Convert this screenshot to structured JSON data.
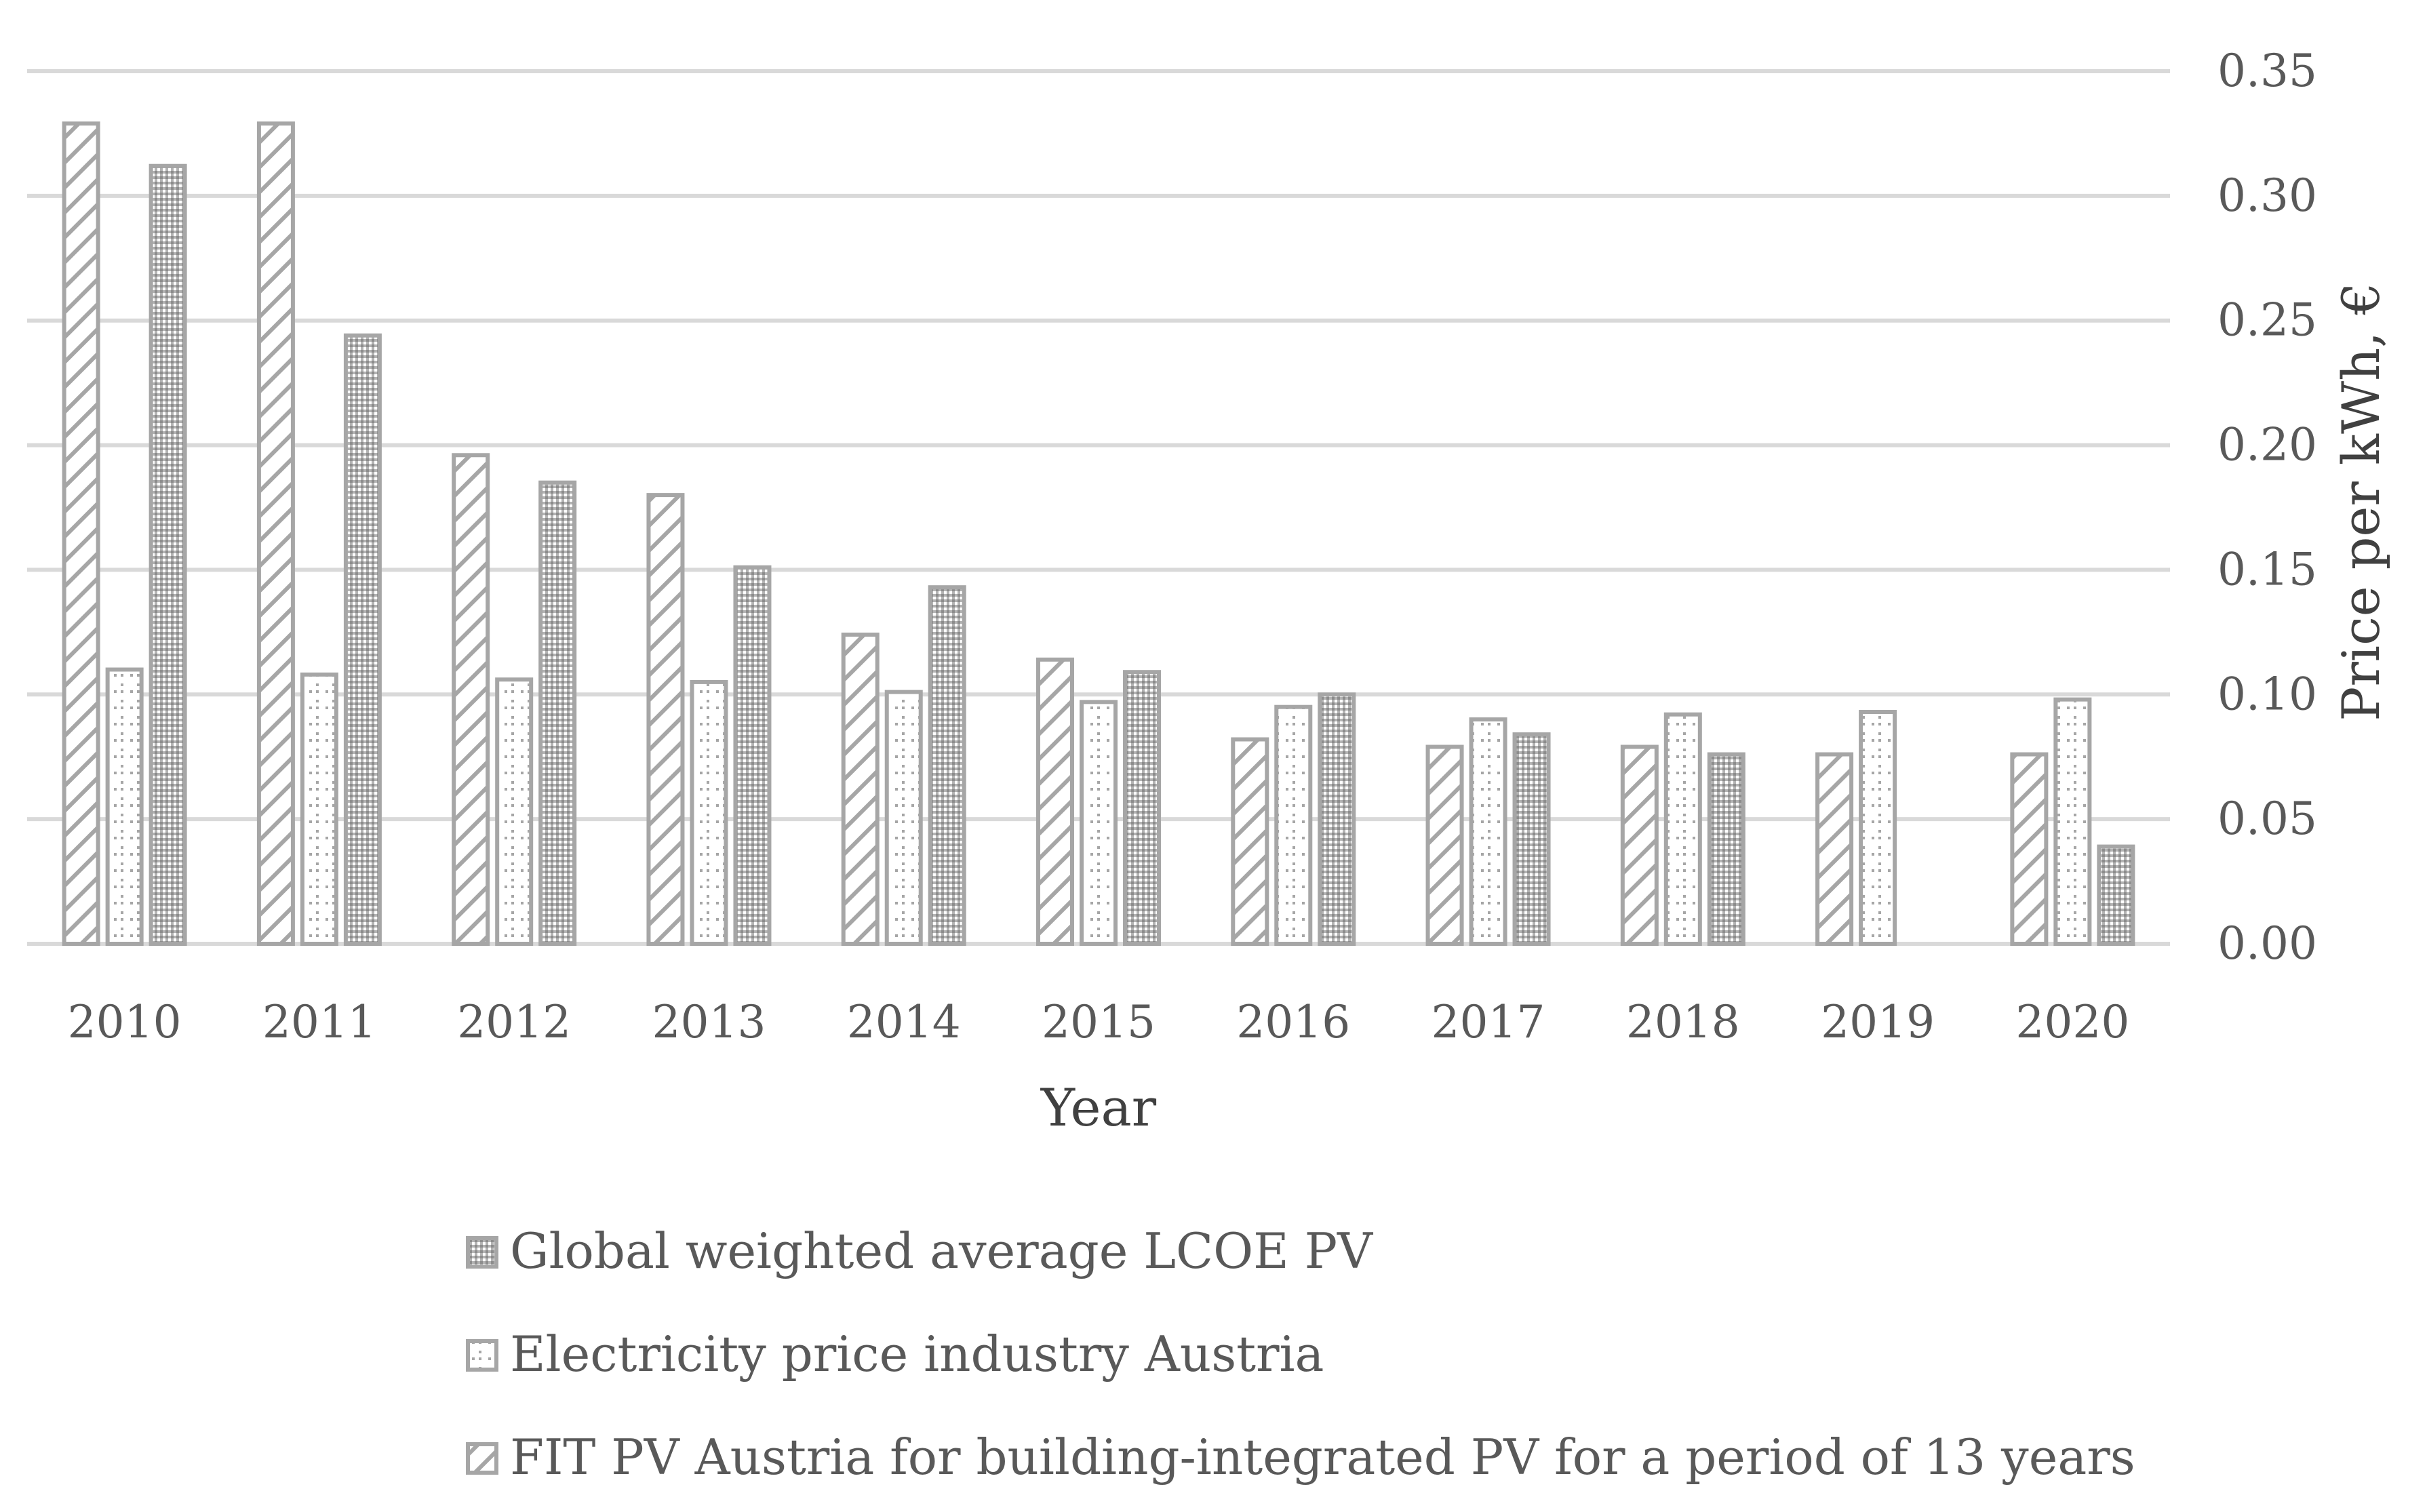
{
  "chart_data": {
    "type": "bar",
    "title": "",
    "xlabel": "Year",
    "ylabel": "Price per kWh, €",
    "ylim": [
      0,
      0.35
    ],
    "y_ticks": [
      "0.00",
      "0.05",
      "0.10",
      "0.15",
      "0.20",
      "0.25",
      "0.30",
      "0.35"
    ],
    "y_axis_side": "right",
    "grid": true,
    "legend_position": "bottom",
    "categories": [
      "2010",
      "2011",
      "2012",
      "2013",
      "2014",
      "2015",
      "2016",
      "2017",
      "2018",
      "2019",
      "2020"
    ],
    "series": [
      {
        "name": "FIT PV Austria for building-integrated PV for a period of 13 years",
        "pattern": "diagonal-hatch",
        "values": [
          0.329,
          0.329,
          0.196,
          0.18,
          0.124,
          0.114,
          0.082,
          0.079,
          0.079,
          0.076,
          0.076
        ]
      },
      {
        "name": "Electricity price industry Austria",
        "pattern": "dotted-grid",
        "values": [
          0.11,
          0.108,
          0.106,
          0.105,
          0.101,
          0.097,
          0.095,
          0.09,
          0.092,
          0.093,
          0.098
        ]
      },
      {
        "name": "Global weighted average LCOE PV",
        "pattern": "dense-dots",
        "values": [
          0.312,
          0.244,
          0.185,
          0.151,
          0.143,
          0.109,
          0.1,
          0.084,
          0.076,
          null,
          0.039
        ]
      }
    ],
    "legend_order": [
      2,
      1,
      0
    ],
    "colors": {
      "stroke": "#a6a6a6",
      "grid": "#d9d9d9",
      "tick_text": "#595959",
      "title_text": "#404040"
    }
  }
}
